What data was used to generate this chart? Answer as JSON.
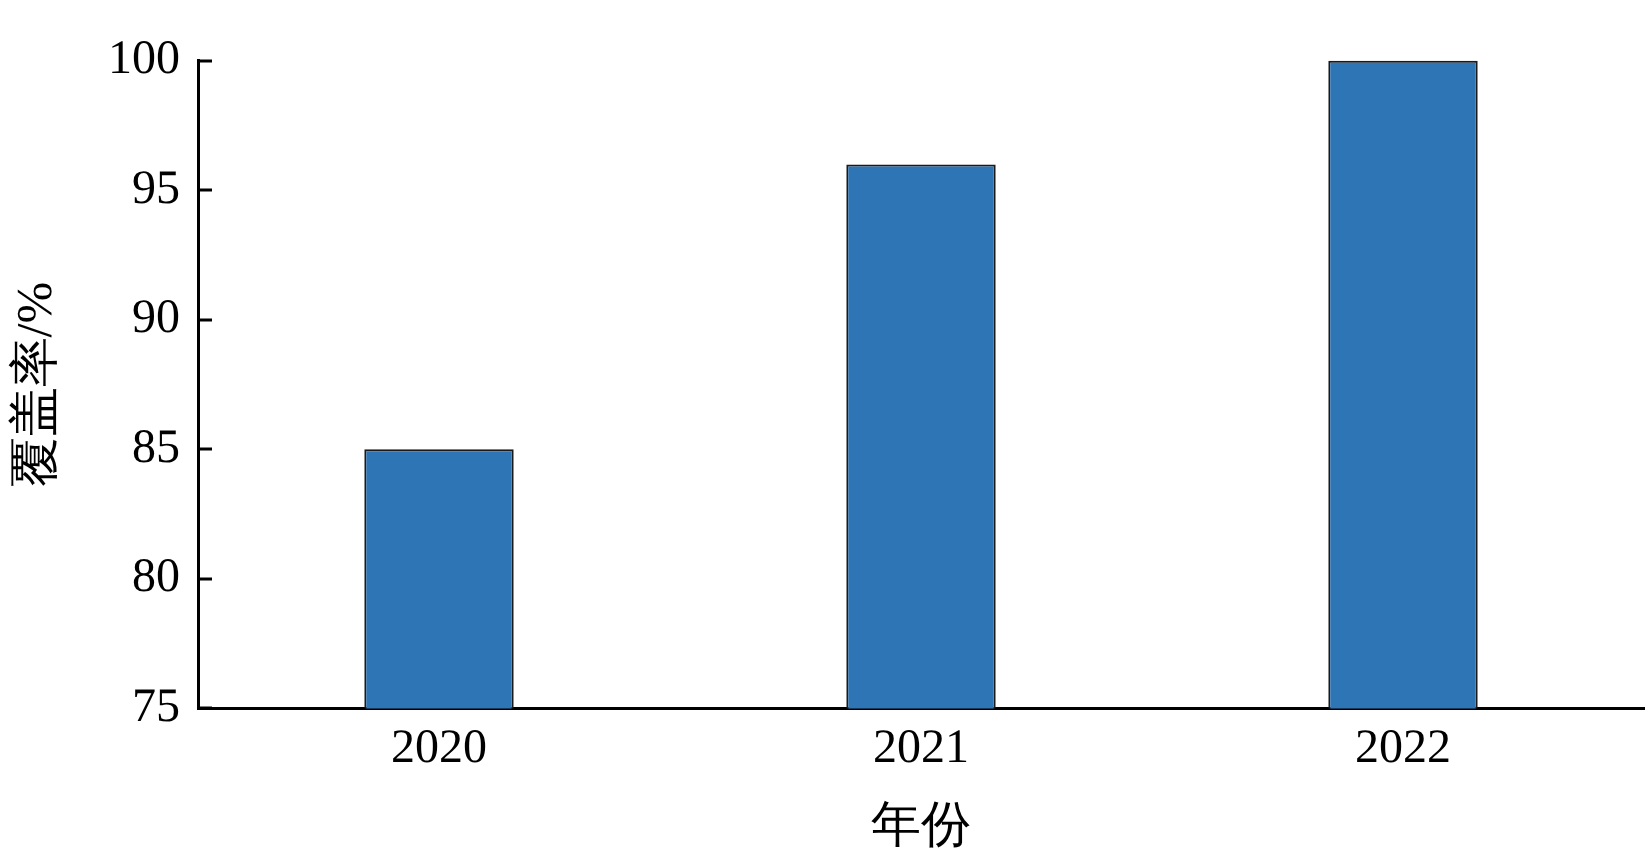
{
  "chart_data": {
    "type": "bar",
    "xlabel": "年份",
    "ylabel": "覆盖率/%",
    "categories": [
      "2020",
      "2021",
      "2022"
    ],
    "values": [
      85,
      96,
      100
    ],
    "color": "#2e75b6",
    "ylim": [
      75,
      100
    ],
    "yticks": [
      75,
      80,
      85,
      90,
      95,
      100
    ],
    "grid": false,
    "legend": false
  }
}
